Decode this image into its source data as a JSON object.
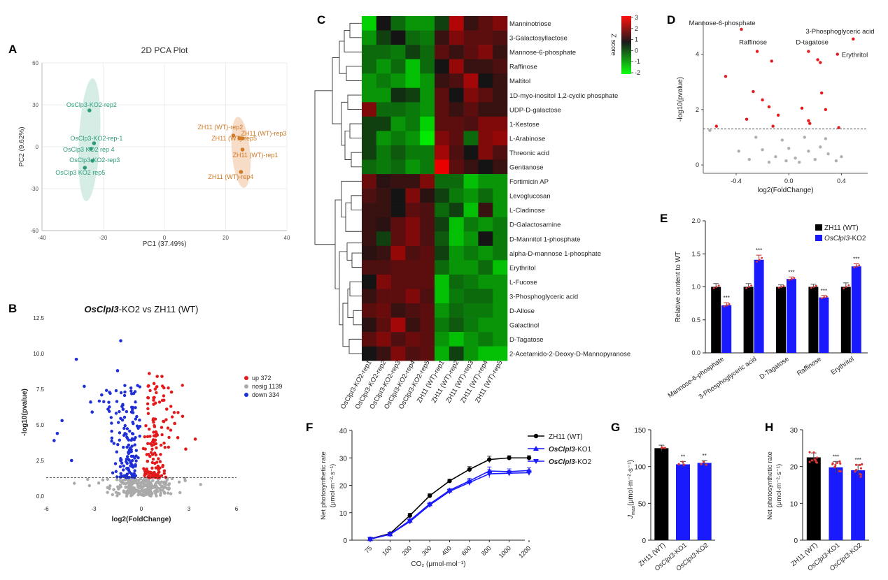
{
  "panels": {
    "A": "A",
    "B": "B",
    "C": "C",
    "D": "D",
    "E": "E",
    "F": "F",
    "G": "G",
    "H": "H"
  },
  "chart_data": [
    {
      "panel": "A",
      "type": "scatter",
      "title": "2D PCA Plot",
      "xlabel": "PC1 (37.49%)",
      "ylabel": "PC2 (9.62%)",
      "xlim": [
        -40,
        40
      ],
      "ylim": [
        -60,
        60
      ],
      "xticks": [
        -40,
        -20,
        0,
        20,
        40
      ],
      "yticks": [
        -60,
        -30,
        0,
        30,
        60
      ],
      "colors": {
        "ko": "#2e9c7c",
        "wt": "#cf7a25",
        "ko_ellipse": "#d6ede6",
        "wt_ellipse": "#f7dcc8"
      },
      "series": [
        {
          "group": "ko",
          "points": [
            {
              "x": -24.5,
              "y": 26.0,
              "label": "OsClp3-KO2-rep2"
            },
            {
              "x": -23.0,
              "y": 2.5,
              "label": "OsClp3-KO2-rep-1"
            },
            {
              "x": -24.0,
              "y": -1.5,
              "label": "OsClp3 KO2 rep 4"
            },
            {
              "x": -23.5,
              "y": -10.0,
              "label": "OsClp3-KO2-rep3"
            },
            {
              "x": -26.0,
              "y": -15.0,
              "label": "OsClp3 KO2 rep5"
            }
          ]
        },
        {
          "group": "wt",
          "points": [
            {
              "x": 24.5,
              "y": 6.0,
              "label": "ZH11 (WT)-rep5"
            },
            {
              "x": 25.5,
              "y": 6.0,
              "label": "ZH11 (WT)-rep3"
            },
            {
              "x": 22.5,
              "y": 8.0,
              "label": "ZH11 (WT)-rep2"
            },
            {
              "x": 25.5,
              "y": -2.0,
              "label": "ZH11 (WT)-rep1"
            },
            {
              "x": 25.0,
              "y": -18.0,
              "label": "ZH11 (WT)-rep4"
            }
          ]
        }
      ]
    },
    {
      "panel": "B",
      "type": "scatter",
      "title_italic": "OsClpI3",
      "title_rest": "-KO2 vs ZH11 (WT)",
      "xlabel": "log2(FoldChange)",
      "ylabel": "-log10(pvalue)",
      "xlim": [
        -6,
        6
      ],
      "ylim": [
        0,
        12.5
      ],
      "xticks": [
        -6,
        -3,
        0,
        3,
        6
      ],
      "yticks": [
        0.0,
        2.5,
        5.0,
        7.5,
        10.0,
        12.5
      ],
      "threshold": 1.3,
      "legend": [
        {
          "label": "up 372",
          "color": "#e31a1c"
        },
        {
          "label": "nosig 1139",
          "color": "#aaaaaa"
        },
        {
          "label": "down 334",
          "color": "#1f2fd6"
        }
      ],
      "counts": {
        "up": 372,
        "nosig": 1139,
        "down": 334
      }
    },
    {
      "panel": "C",
      "type": "heatmap",
      "colorbar_title": "Z score",
      "colorbar_ticks": [
        3,
        2,
        1,
        0,
        -1,
        -2
      ],
      "columns": [
        "OsClpI3-KO2-rep1",
        "OsClpI3-KO2-rep2",
        "OsClpI3-KO2-rep3",
        "OsClpI3-KO2-rep4",
        "OsClpI3-KO2-rep5",
        "ZH11 (WT)-rep1",
        "ZH11 (WT)-rep2",
        "ZH11 (WT)-rep3",
        "ZH11 (WT)-rep4",
        "ZH11 (WT)-rep5"
      ],
      "rows": [
        "Manninotriose",
        "3-Galactosyllactose",
        "Mannose-6-phosphate",
        "Raffinose",
        "Maltitol",
        "1D-myo-inositol 1,2-cyclic phosphate",
        "UDP-D-galactose",
        "1-Kestose",
        "L-Arabinose",
        "Threonic acid",
        "Gentianose",
        "Fortimicin AP",
        "Levoglucosan",
        "L-Cladinose",
        "D-Galactosamine",
        "D-Mannitol 1-phosphate",
        "alpha-D-mannose 1-phosphate",
        "Erythritol",
        "L-Fucose",
        "3-Phosphoglyceric acid",
        "D-Allose",
        "Galactinol",
        "D-Tagatose",
        "2-Acetamido-2-Deoxy-D-Mannopyranose"
      ],
      "values": [
        [
          -2.2,
          0,
          -1,
          -1.5,
          -1.5,
          -0.5,
          2.2,
          0.5,
          1,
          1.5
        ],
        [
          -1.5,
          -0.5,
          0,
          -1,
          -1.2,
          0.5,
          1.5,
          1,
          1,
          0.8
        ],
        [
          -1,
          -1,
          -1.2,
          -0.5,
          -1,
          1,
          0.5,
          1,
          1.5,
          0.5
        ],
        [
          -1,
          -1.5,
          -1,
          -2,
          -1,
          0,
          1.8,
          0.5,
          0.5,
          0.8
        ],
        [
          -1.5,
          -1.2,
          -1.5,
          -2,
          -1.5,
          0.5,
          0.8,
          2,
          0,
          0.5
        ],
        [
          -1.5,
          -1.5,
          -0.3,
          -0.5,
          -1.5,
          1,
          0,
          1.5,
          1,
          0.5
        ],
        [
          1.5,
          -1,
          -1,
          -1.2,
          -1.5,
          1,
          0.5,
          1,
          0.5,
          0.5
        ],
        [
          -0.5,
          -0.5,
          -1.5,
          -1.2,
          -2.2,
          1,
          1,
          0.8,
          1.5,
          1.5
        ],
        [
          -0.5,
          -1.5,
          -1.2,
          -1.5,
          -2.5,
          1.5,
          1,
          -1,
          1.5,
          1.8
        ],
        [
          -0.5,
          -1.2,
          -0.8,
          -1.2,
          -1.2,
          2,
          0.8,
          0,
          1.5,
          0.8
        ],
        [
          -1,
          -1.2,
          -1,
          -1.5,
          -1.2,
          3,
          1,
          0.5,
          0,
          0.5
        ],
        [
          1.2,
          0.3,
          0.5,
          0.5,
          1.5,
          -1,
          -1,
          -2,
          -1.5,
          -1.5
        ],
        [
          0.8,
          0.5,
          0,
          1.5,
          0.3,
          -0.5,
          -1.2,
          -1.5,
          -1,
          -1.5
        ],
        [
          0.5,
          0.5,
          0,
          1,
          0.8,
          -1,
          -0.5,
          -2,
          0.5,
          -1.5
        ],
        [
          0.5,
          0.3,
          1,
          1.5,
          0.8,
          -0.5,
          -2,
          -1.2,
          -1.5,
          -1.2
        ],
        [
          0.5,
          -0.5,
          1,
          1.5,
          0.8,
          -0.8,
          -2,
          -1.5,
          0,
          -1.2
        ],
        [
          0.3,
          0.5,
          1.8,
          0.8,
          1,
          -0.5,
          -1.5,
          -1.2,
          -1.5,
          -1.2
        ],
        [
          0.8,
          0.8,
          1,
          1,
          1,
          -1,
          -1.5,
          -1.5,
          -1,
          -2
        ],
        [
          0,
          1.5,
          1,
          1,
          1,
          -2,
          -1,
          -1.2,
          -1.5,
          -1.5
        ],
        [
          0.5,
          1,
          1,
          1.5,
          0.8,
          -2,
          -1.2,
          -1,
          -1,
          -1.5
        ],
        [
          1,
          1.2,
          0.5,
          0.8,
          1,
          -1.5,
          -1,
          -1.2,
          -1.2,
          -1.5
        ],
        [
          0.3,
          1,
          2,
          0.5,
          1,
          -1.2,
          -0.8,
          -1.2,
          -1.5,
          -1.5
        ],
        [
          1,
          1.5,
          0.8,
          1.2,
          1,
          -1.5,
          -2,
          -1.5,
          -1.2,
          -1.5
        ],
        [
          0,
          0.5,
          1.5,
          0.8,
          1,
          -1.8,
          -0.5,
          -1.5,
          -2,
          -2
        ]
      ]
    },
    {
      "panel": "D",
      "type": "scatter",
      "xlabel": "log2(FoldChange)",
      "ylabel": "-log10(pvalue)",
      "xlim": [
        -0.65,
        0.6
      ],
      "ylim": [
        -0.3,
        5.2
      ],
      "xticks": [
        -0.4,
        0.0,
        0.4
      ],
      "yticks": [
        0,
        2,
        4
      ],
      "threshold": 1.3,
      "annotations": [
        {
          "label": "Mannose-6-phosphate",
          "x": -0.36,
          "y": 4.9
        },
        {
          "label": "3-Phosphoglyceric acid",
          "x": 0.49,
          "y": 4.55
        },
        {
          "label": "Raffinose",
          "x": -0.24,
          "y": 4.1
        },
        {
          "label": "D-tagatose",
          "x": 0.15,
          "y": 4.1
        },
        {
          "label": "Erythritol",
          "x": 0.37,
          "y": 4.0
        }
      ],
      "sig_points": [
        {
          "x": -0.36,
          "y": 4.9
        },
        {
          "x": 0.49,
          "y": 4.55
        },
        {
          "x": -0.24,
          "y": 4.1
        },
        {
          "x": 0.15,
          "y": 4.1
        },
        {
          "x": 0.37,
          "y": 4.0
        },
        {
          "x": -0.13,
          "y": 3.75
        },
        {
          "x": 0.22,
          "y": 3.8
        },
        {
          "x": 0.24,
          "y": 3.7
        },
        {
          "x": -0.48,
          "y": 3.2
        },
        {
          "x": -0.27,
          "y": 2.65
        },
        {
          "x": 0.25,
          "y": 2.6
        },
        {
          "x": -0.2,
          "y": 2.35
        },
        {
          "x": -0.15,
          "y": 2.1
        },
        {
          "x": 0.1,
          "y": 2.05
        },
        {
          "x": 0.28,
          "y": 2.0
        },
        {
          "x": -0.08,
          "y": 1.8
        },
        {
          "x": 0.15,
          "y": 1.6
        },
        {
          "x": -0.32,
          "y": 1.65
        },
        {
          "x": 0.16,
          "y": 1.5
        },
        {
          "x": -0.12,
          "y": 1.4
        },
        {
          "x": -0.55,
          "y": 1.4
        },
        {
          "x": 0.38,
          "y": 1.35
        }
      ],
      "nonsig_points": [
        {
          "x": -0.6,
          "y": 1.25
        },
        {
          "x": -0.25,
          "y": 1.0
        },
        {
          "x": -0.05,
          "y": 0.9
        },
        {
          "x": 0.12,
          "y": 1.0
        },
        {
          "x": 0.28,
          "y": 0.95
        },
        {
          "x": -0.38,
          "y": 0.5
        },
        {
          "x": -0.2,
          "y": 0.55
        },
        {
          "x": 0.0,
          "y": 0.6
        },
        {
          "x": 0.15,
          "y": 0.5
        },
        {
          "x": 0.3,
          "y": 0.4
        },
        {
          "x": -0.1,
          "y": 0.3
        },
        {
          "x": 0.05,
          "y": 0.25
        },
        {
          "x": -0.02,
          "y": 0.15
        },
        {
          "x": 0.08,
          "y": 0.1
        },
        {
          "x": 0.2,
          "y": 0.2
        },
        {
          "x": -0.15,
          "y": 0.1
        },
        {
          "x": 0.36,
          "y": 0.15
        },
        {
          "x": -0.3,
          "y": 0.2
        },
        {
          "x": 0.24,
          "y": 0.65
        },
        {
          "x": 0.4,
          "y": 0.3
        }
      ]
    },
    {
      "panel": "E",
      "type": "bar",
      "ylabel": "Relative content to WT",
      "ylim": [
        0,
        2.0
      ],
      "yticks": [
        0.0,
        0.5,
        1.0,
        1.5,
        2.0
      ],
      "categories": [
        "Mannose-6-phosphate",
        "3-Phosphoglyceric acid",
        "D-Tagatose",
        "Raffinose",
        "Erythritol"
      ],
      "series": [
        {
          "name": "ZH11 (WT)",
          "color": "#000000",
          "values": [
            1.0,
            1.0,
            1.0,
            1.0,
            1.0
          ],
          "errors": [
            0.05,
            0.05,
            0.03,
            0.04,
            0.06
          ]
        },
        {
          "name_italic": "OsClpI3",
          "name_rest": "-KO2",
          "color": "#1a1aff",
          "values": [
            0.72,
            1.41,
            1.12,
            0.84,
            1.31
          ],
          "errors": [
            0.04,
            0.07,
            0.03,
            0.03,
            0.04
          ]
        }
      ],
      "significance": [
        "***",
        "***",
        "***",
        "***",
        "***"
      ]
    },
    {
      "panel": "F",
      "type": "line",
      "xlabel": "CO₂ (μmol·mol⁻¹)",
      "ylabel": [
        "Net photosynthetic rate",
        "(μmol·m⁻²·s⁻¹)"
      ],
      "ylim": [
        0,
        40
      ],
      "yticks": [
        0,
        10,
        20,
        30,
        40
      ],
      "categories": [
        "75",
        "100",
        "200",
        "300",
        "400",
        "600",
        "800",
        "1000",
        "1200"
      ],
      "series": [
        {
          "name": "ZH11 (WT)",
          "color": "#000000",
          "marker": "circle",
          "values": [
            0.5,
            2.4,
            9.0,
            16.2,
            21.6,
            25.8,
            29.4,
            30.0,
            30.0
          ],
          "errors": [
            0.2,
            0.4,
            0.8,
            0.7,
            0.6,
            1.0,
            1.2,
            0.8,
            0.8
          ]
        },
        {
          "name_italic": "OsClpI3",
          "name_rest": "-KO1",
          "color": "#1a1aff",
          "marker": "triangle-up",
          "values": [
            0.4,
            2.2,
            7.2,
            13.2,
            18.2,
            21.6,
            25.2,
            25.0,
            25.4
          ],
          "errors": [
            0.2,
            0.4,
            0.7,
            0.6,
            0.6,
            1.0,
            1.5,
            1.0,
            1.0
          ]
        },
        {
          "name_italic": "OsClpI3",
          "name_rest": "-KO2",
          "color": "#1a1aff",
          "marker": "triangle-down",
          "values": [
            0.4,
            2.1,
            6.8,
            12.8,
            17.8,
            21.0,
            24.2,
            24.4,
            24.6
          ],
          "errors": [
            0.2,
            0.4,
            0.7,
            0.6,
            0.6,
            1.0,
            1.5,
            1.0,
            1.0
          ]
        }
      ]
    },
    {
      "panel": "G",
      "type": "bar",
      "ylabel_main": "J",
      "ylabel_sub": "max",
      "ylabel_unit": "(μmol·m⁻²·s⁻¹)",
      "ylim": [
        0,
        150
      ],
      "yticks": [
        0,
        50,
        100,
        150
      ],
      "categories": [
        {
          "plain": "ZH11 (WT)"
        },
        {
          "italic": "OsClpI3",
          "rest": "-KO1"
        },
        {
          "italic": "OsClpI3",
          "rest": "-KO2"
        }
      ],
      "values": [
        125,
        103,
        105
      ],
      "errors": [
        4,
        4,
        3
      ],
      "colors": [
        "#000000",
        "#1a1aff",
        "#1a1aff"
      ],
      "significance": [
        "",
        "**",
        "**"
      ]
    },
    {
      "panel": "H",
      "type": "bar",
      "ylabel": [
        "Net photosynthetic rate",
        "(μmol·m⁻²·s⁻¹)"
      ],
      "ylim": [
        0,
        30
      ],
      "yticks": [
        0,
        10,
        20,
        30
      ],
      "categories": [
        {
          "plain": "ZH11 (WT)"
        },
        {
          "italic": "OsClpI3",
          "rest": "-KO1"
        },
        {
          "italic": "OsClpI3",
          "rest": "-KO2"
        }
      ],
      "values": [
        22.5,
        19.8,
        19.0
      ],
      "errors": [
        1.2,
        1.6,
        1.5
      ],
      "colors": [
        "#000000",
        "#1a1aff",
        "#1a1aff"
      ],
      "significance": [
        "",
        "***",
        "***"
      ]
    }
  ]
}
